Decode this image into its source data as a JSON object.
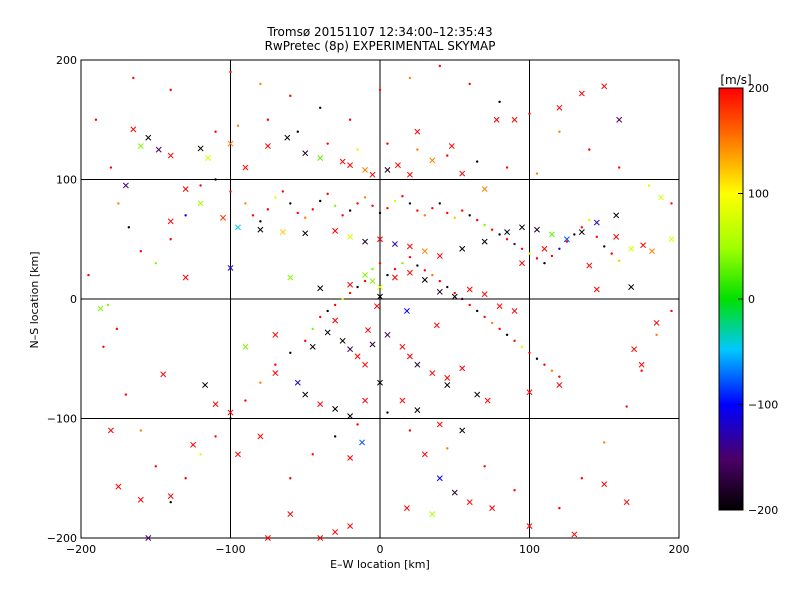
{
  "chart_data": {
    "type": "scatter",
    "title": "Tromsø 20151107 12:34:00–12:35:43",
    "subtitle": "RwPretec (8p) EXPERIMENTAL SKYMAP",
    "xlabel": "E–W location [km]",
    "ylabel": "N–S location [km]",
    "xlim": [
      -200,
      200
    ],
    "ylim": [
      -200,
      200
    ],
    "xticks": [
      -200,
      -100,
      0,
      100,
      200
    ],
    "yticks": [
      -200,
      -100,
      0,
      100,
      200
    ],
    "grid": true,
    "colorbar": {
      "label": "[m/s]",
      "range": [
        -200,
        200
      ],
      "ticks": [
        -200,
        -100,
        0,
        100,
        200
      ],
      "colormap": "black-purple-blue-cyan-green-yellow-orange-red"
    },
    "markers": {
      "large": "x",
      "small": "dot"
    },
    "points_large": [
      [
        -165,
        142,
        200
      ],
      [
        -148,
        125,
        -150
      ],
      [
        -155,
        135,
        -200
      ],
      [
        -140,
        120,
        200
      ],
      [
        -160,
        128,
        40
      ],
      [
        -120,
        126,
        -200
      ],
      [
        -115,
        118,
        80
      ],
      [
        -100,
        130,
        150
      ],
      [
        -90,
        110,
        200
      ],
      [
        -75,
        128,
        200
      ],
      [
        -62,
        135,
        -200
      ],
      [
        -50,
        122,
        -180
      ],
      [
        -40,
        118,
        30
      ],
      [
        -25,
        115,
        200
      ],
      [
        -20,
        112,
        200
      ],
      [
        -10,
        108,
        150
      ],
      [
        -5,
        104,
        200
      ],
      [
        5,
        108,
        -180
      ],
      [
        12,
        112,
        200
      ],
      [
        20,
        104,
        200
      ],
      [
        35,
        116,
        150
      ],
      [
        55,
        105,
        200
      ],
      [
        70,
        92,
        150
      ],
      [
        78,
        150,
        200
      ],
      [
        90,
        150,
        200
      ],
      [
        120,
        160,
        200
      ],
      [
        135,
        172,
        200
      ],
      [
        150,
        178,
        200
      ],
      [
        160,
        150,
        -150
      ],
      [
        -170,
        95,
        -150
      ],
      [
        -130,
        92,
        200
      ],
      [
        -120,
        80,
        50
      ],
      [
        -105,
        68,
        180
      ],
      [
        -95,
        60,
        -50
      ],
      [
        -80,
        58,
        -200
      ],
      [
        -65,
        56,
        120
      ],
      [
        -50,
        55,
        -200
      ],
      [
        -30,
        57,
        200
      ],
      [
        -20,
        52,
        80
      ],
      [
        -10,
        48,
        -180
      ],
      [
        0,
        50,
        200
      ],
      [
        10,
        46,
        -120
      ],
      [
        20,
        44,
        200
      ],
      [
        30,
        40,
        150
      ],
      [
        40,
        36,
        200
      ],
      [
        55,
        42,
        -200
      ],
      [
        70,
        48,
        -200
      ],
      [
        85,
        56,
        -200
      ],
      [
        95,
        60,
        -200
      ],
      [
        105,
        58,
        -180
      ],
      [
        115,
        54,
        30
      ],
      [
        125,
        50,
        -80
      ],
      [
        135,
        56,
        -200
      ],
      [
        145,
        64,
        -120
      ],
      [
        158,
        52,
        200
      ],
      [
        168,
        42,
        80
      ],
      [
        176,
        45,
        200
      ],
      [
        182,
        40,
        150
      ],
      [
        195,
        50,
        80
      ],
      [
        -140,
        65,
        200
      ],
      [
        -100,
        26,
        -120
      ],
      [
        -60,
        18,
        40
      ],
      [
        -40,
        9,
        -200
      ],
      [
        -20,
        12,
        200
      ],
      [
        -10,
        20,
        40
      ],
      [
        -5,
        15,
        40
      ],
      [
        0,
        10,
        80
      ],
      [
        10,
        18,
        200
      ],
      [
        20,
        22,
        200
      ],
      [
        30,
        16,
        -200
      ],
      [
        40,
        6,
        -180
      ],
      [
        50,
        2,
        -200
      ],
      [
        60,
        8,
        200
      ],
      [
        70,
        4,
        200
      ],
      [
        80,
        -6,
        200
      ],
      [
        95,
        30,
        200
      ],
      [
        110,
        42,
        200
      ],
      [
        140,
        28,
        200
      ],
      [
        168,
        10,
        -200
      ],
      [
        -30,
        -18,
        200
      ],
      [
        -35,
        -28,
        -200
      ],
      [
        -25,
        -35,
        -200
      ],
      [
        -20,
        -42,
        -150
      ],
      [
        -15,
        -48,
        200
      ],
      [
        -10,
        -55,
        200
      ],
      [
        -5,
        -38,
        -180
      ],
      [
        5,
        -30,
        -150
      ],
      [
        15,
        -40,
        200
      ],
      [
        20,
        -48,
        200
      ],
      [
        25,
        -55,
        -180
      ],
      [
        35,
        -62,
        200
      ],
      [
        45,
        -72,
        -200
      ],
      [
        55,
        -58,
        200
      ],
      [
        65,
        -80,
        -200
      ],
      [
        -70,
        -62,
        200
      ],
      [
        -55,
        -70,
        -120
      ],
      [
        -50,
        -80,
        -200
      ],
      [
        -40,
        -88,
        200
      ],
      [
        -30,
        -92,
        -200
      ],
      [
        -20,
        -98,
        -200
      ],
      [
        -10,
        -85,
        200
      ],
      [
        0,
        -70,
        -200
      ],
      [
        15,
        -85,
        200
      ],
      [
        25,
        -93,
        -200
      ],
      [
        40,
        -105,
        200
      ],
      [
        55,
        -110,
        -200
      ],
      [
        -110,
        -88,
        200
      ],
      [
        -100,
        -95,
        200
      ],
      [
        -12,
        -120,
        -80
      ],
      [
        -20,
        -133,
        200
      ],
      [
        30,
        -130,
        200
      ],
      [
        40,
        -150,
        -100
      ],
      [
        50,
        -162,
        -180
      ],
      [
        60,
        -170,
        200
      ],
      [
        75,
        -175,
        200
      ],
      [
        -175,
        -157,
        200
      ],
      [
        -160,
        -168,
        200
      ],
      [
        -140,
        -165,
        200
      ],
      [
        -155,
        -200,
        -150
      ],
      [
        -40,
        -200,
        200
      ],
      [
        -30,
        -195,
        200
      ],
      [
        -20,
        -190,
        200
      ],
      [
        18,
        -175,
        200
      ],
      [
        35,
        -180,
        60
      ],
      [
        -95,
        -130,
        200
      ],
      [
        -60,
        -180,
        200
      ],
      [
        -75,
        -200,
        200
      ],
      [
        100,
        -190,
        200
      ],
      [
        130,
        -197,
        200
      ],
      [
        150,
        -155,
        200
      ],
      [
        165,
        -170,
        200
      ],
      [
        -130,
        18,
        200
      ],
      [
        -90,
        -40,
        40
      ],
      [
        -70,
        -30,
        200
      ],
      [
        -45,
        -40,
        -200
      ],
      [
        -8,
        -26,
        200
      ],
      [
        0,
        2,
        -200
      ],
      [
        -2,
        -6,
        200
      ],
      [
        18,
        -10,
        -100
      ],
      [
        38,
        -22,
        200
      ],
      [
        90,
        -10,
        200
      ],
      [
        145,
        8,
        200
      ],
      [
        170,
        -42,
        200
      ],
      [
        185,
        -20,
        200
      ],
      [
        -187,
        -8,
        40
      ],
      [
        -145,
        -63,
        200
      ],
      [
        -117,
        -72,
        -200
      ],
      [
        -80,
        -115,
        200
      ],
      [
        45,
        -66,
        200
      ],
      [
        72,
        -85,
        200
      ],
      [
        100,
        -78,
        200
      ],
      [
        120,
        -72,
        200
      ],
      [
        175,
        -55,
        200
      ],
      [
        25,
        140,
        200
      ],
      [
        48,
        128,
        200
      ],
      [
        -180,
        -110,
        200
      ],
      [
        -125,
        -122,
        200
      ],
      [
        188,
        85,
        80
      ],
      [
        158,
        70,
        -200
      ]
    ],
    "points_small": [
      [
        -190,
        150,
        200
      ],
      [
        -180,
        110,
        200
      ],
      [
        -175,
        80,
        150
      ],
      [
        -168,
        60,
        -200
      ],
      [
        -160,
        40,
        200
      ],
      [
        -150,
        30,
        40
      ],
      [
        -140,
        50,
        200
      ],
      [
        -130,
        70,
        -100
      ],
      [
        -120,
        95,
        200
      ],
      [
        -110,
        100,
        -200
      ],
      [
        -100,
        90,
        200
      ],
      [
        -90,
        80,
        150
      ],
      [
        -85,
        70,
        200
      ],
      [
        -80,
        65,
        -200
      ],
      [
        -75,
        75,
        200
      ],
      [
        -70,
        85,
        80
      ],
      [
        -65,
        90,
        200
      ],
      [
        -60,
        80,
        -200
      ],
      [
        -55,
        72,
        200
      ],
      [
        -50,
        68,
        150
      ],
      [
        -45,
        75,
        200
      ],
      [
        -40,
        82,
        -200
      ],
      [
        -35,
        88,
        200
      ],
      [
        -30,
        78,
        40
      ],
      [
        -25,
        70,
        200
      ],
      [
        -20,
        74,
        -200
      ],
      [
        -15,
        80,
        200
      ],
      [
        -10,
        85,
        150
      ],
      [
        -5,
        78,
        200
      ],
      [
        0,
        72,
        -200
      ],
      [
        5,
        76,
        200
      ],
      [
        10,
        82,
        80
      ],
      [
        15,
        86,
        200
      ],
      [
        20,
        80,
        -200
      ],
      [
        25,
        74,
        200
      ],
      [
        30,
        70,
        150
      ],
      [
        35,
        76,
        200
      ],
      [
        40,
        80,
        -200
      ],
      [
        45,
        72,
        200
      ],
      [
        50,
        68,
        120
      ],
      [
        55,
        74,
        200
      ],
      [
        60,
        70,
        -200
      ],
      [
        65,
        66,
        200
      ],
      [
        70,
        62,
        40
      ],
      [
        75,
        58,
        200
      ],
      [
        80,
        54,
        -200
      ],
      [
        85,
        50,
        200
      ],
      [
        90,
        46,
        -150
      ],
      [
        95,
        42,
        200
      ],
      [
        100,
        38,
        80
      ],
      [
        105,
        34,
        200
      ],
      [
        110,
        30,
        -200
      ],
      [
        115,
        36,
        200
      ],
      [
        120,
        42,
        -120
      ],
      [
        125,
        48,
        200
      ],
      [
        130,
        54,
        -200
      ],
      [
        135,
        60,
        200
      ],
      [
        140,
        66,
        80
      ],
      [
        145,
        52,
        200
      ],
      [
        150,
        44,
        -200
      ],
      [
        155,
        38,
        200
      ],
      [
        160,
        32,
        120
      ],
      [
        -185,
        -40,
        200
      ],
      [
        -170,
        -80,
        200
      ],
      [
        -160,
        -110,
        150
      ],
      [
        -150,
        -140,
        200
      ],
      [
        -140,
        -170,
        -200
      ],
      [
        -130,
        -150,
        200
      ],
      [
        -120,
        -130,
        80
      ],
      [
        -110,
        -115,
        200
      ],
      [
        -100,
        -100,
        -200
      ],
      [
        -90,
        -85,
        200
      ],
      [
        -80,
        -70,
        150
      ],
      [
        -70,
        -55,
        200
      ],
      [
        -60,
        -45,
        -200
      ],
      [
        -50,
        -35,
        200
      ],
      [
        -45,
        -25,
        40
      ],
      [
        -40,
        -15,
        200
      ],
      [
        -35,
        -10,
        -200
      ],
      [
        -30,
        -5,
        200
      ],
      [
        -25,
        0,
        80
      ],
      [
        -20,
        5,
        200
      ],
      [
        -15,
        10,
        -200
      ],
      [
        -10,
        15,
        200
      ],
      [
        -5,
        25,
        40
      ],
      [
        0,
        30,
        200
      ],
      [
        5,
        20,
        -200
      ],
      [
        10,
        25,
        200
      ],
      [
        15,
        30,
        40
      ],
      [
        20,
        35,
        200
      ],
      [
        25,
        28,
        -200
      ],
      [
        30,
        24,
        200
      ],
      [
        35,
        20,
        150
      ],
      [
        40,
        15,
        200
      ],
      [
        45,
        10,
        -200
      ],
      [
        50,
        5,
        200
      ],
      [
        55,
        0,
        -180
      ],
      [
        60,
        -5,
        200
      ],
      [
        65,
        -10,
        -200
      ],
      [
        70,
        -15,
        200
      ],
      [
        75,
        -20,
        150
      ],
      [
        80,
        -25,
        200
      ],
      [
        85,
        -30,
        -200
      ],
      [
        90,
        -35,
        200
      ],
      [
        95,
        -40,
        80
      ],
      [
        100,
        -45,
        200
      ],
      [
        105,
        -50,
        -200
      ],
      [
        110,
        -55,
        200
      ],
      [
        115,
        -60,
        150
      ],
      [
        120,
        -65,
        200
      ],
      [
        -165,
        185,
        200
      ],
      [
        -140,
        175,
        200
      ],
      [
        -100,
        190,
        200
      ],
      [
        -80,
        180,
        150
      ],
      [
        -60,
        170,
        200
      ],
      [
        -40,
        160,
        -200
      ],
      [
        -20,
        150,
        200
      ],
      [
        0,
        175,
        200
      ],
      [
        20,
        185,
        150
      ],
      [
        40,
        195,
        200
      ],
      [
        60,
        180,
        200
      ],
      [
        80,
        165,
        -200
      ],
      [
        100,
        155,
        200
      ],
      [
        120,
        140,
        150
      ],
      [
        140,
        125,
        200
      ],
      [
        160,
        110,
        200
      ],
      [
        180,
        95,
        80
      ],
      [
        195,
        80,
        200
      ],
      [
        -195,
        20,
        200
      ],
      [
        -182,
        -5,
        40
      ],
      [
        -176,
        -25,
        200
      ],
      [
        195,
        -10,
        200
      ],
      [
        185,
        -30,
        150
      ],
      [
        175,
        -60,
        200
      ],
      [
        165,
        -90,
        200
      ],
      [
        150,
        -120,
        150
      ],
      [
        135,
        -150,
        200
      ],
      [
        120,
        -175,
        200
      ],
      [
        -60,
        -150,
        200
      ],
      [
        -45,
        -130,
        200
      ],
      [
        -30,
        -115,
        -200
      ],
      [
        -15,
        -105,
        200
      ],
      [
        5,
        -95,
        -200
      ],
      [
        20,
        -110,
        200
      ],
      [
        45,
        -125,
        150
      ],
      [
        70,
        -140,
        200
      ],
      [
        90,
        -160,
        200
      ],
      [
        -110,
        140,
        200
      ],
      [
        -95,
        145,
        150
      ],
      [
        -75,
        150,
        200
      ],
      [
        -55,
        140,
        -200
      ],
      [
        -35,
        130,
        200
      ],
      [
        -15,
        125,
        80
      ],
      [
        5,
        130,
        200
      ],
      [
        25,
        125,
        150
      ],
      [
        45,
        120,
        200
      ],
      [
        65,
        115,
        -200
      ],
      [
        85,
        110,
        200
      ],
      [
        105,
        105,
        150
      ]
    ]
  }
}
